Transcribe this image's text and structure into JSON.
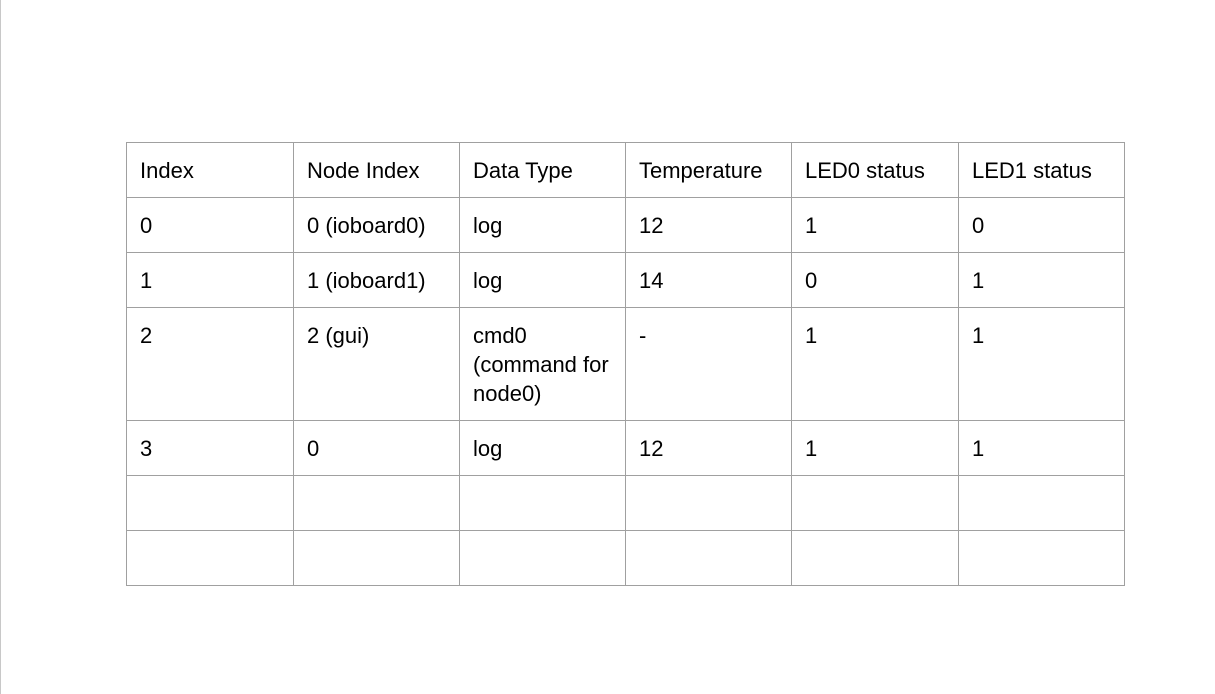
{
  "table": {
    "headers": [
      "Index",
      "Node Index",
      "Data Type",
      "Temperature",
      "LED0 status",
      "LED1 status"
    ],
    "rows": [
      [
        "0",
        "0 (ioboard0)",
        "log",
        "12",
        "1",
        "0"
      ],
      [
        "1",
        "1 (ioboard1)",
        "log",
        "14",
        "0",
        "1"
      ],
      [
        "2",
        "2 (gui)",
        "cmd0 (command for node0)",
        "-",
        "1",
        "1"
      ],
      [
        "3",
        "0",
        "log",
        "12",
        "1",
        "1"
      ],
      [
        "",
        "",
        "",
        "",
        "",
        ""
      ],
      [
        "",
        "",
        "",
        "",
        "",
        ""
      ]
    ]
  }
}
